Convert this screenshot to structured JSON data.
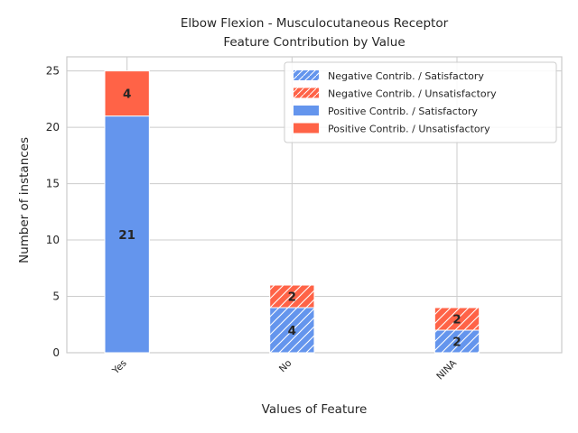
{
  "chart_data": {
    "type": "bar",
    "stacked": true,
    "title_lines": [
      "Elbow Flexion - Musculocutaneous Receptor",
      "Feature Contribution by Value"
    ],
    "xlabel": "Values of Feature",
    "ylabel": "Number of instances",
    "categories": [
      "Yes",
      "No",
      "NINA"
    ],
    "yticks": [
      0,
      5,
      10,
      15,
      20,
      25
    ],
    "ylim": [
      0,
      26.25
    ],
    "grid": true,
    "legend_position": "top-right",
    "colors": {
      "satisfactory": "#6495ed",
      "unsatisfactory": "#ff6347"
    },
    "series": [
      {
        "name": "Negative Contrib. / Satisfactory",
        "contribution": "negative",
        "outcome": "satisfactory",
        "values": [
          0,
          4,
          2
        ]
      },
      {
        "name": "Negative Contrib. / Unsatisfactory",
        "contribution": "negative",
        "outcome": "unsatisfactory",
        "values": [
          0,
          2,
          2
        ]
      },
      {
        "name": "Positive Contrib. / Satisfactory",
        "contribution": "positive",
        "outcome": "satisfactory",
        "values": [
          21,
          0,
          0
        ]
      },
      {
        "name": "Positive Contrib. / Unsatisfactory",
        "contribution": "positive",
        "outcome": "unsatisfactory",
        "values": [
          4,
          0,
          0
        ]
      }
    ]
  }
}
